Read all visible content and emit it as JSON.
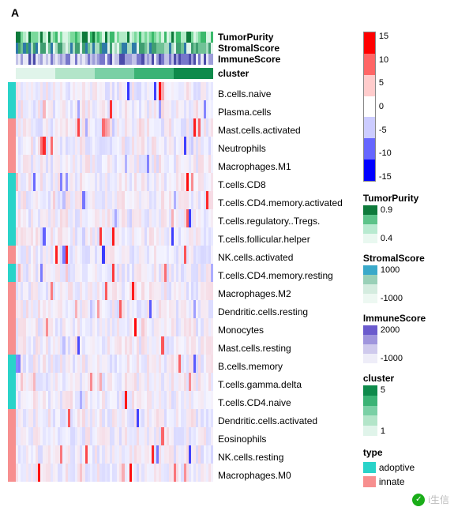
{
  "panel_label": "A",
  "colors": {
    "adoptive": "#29d3c9",
    "innate": "#f78f8f",
    "heat_high": "#ff0000",
    "heat_mid": "#f5f5ff",
    "heat_low": "#0000ff"
  },
  "top_annotations": [
    {
      "name": "TumorPurity",
      "label": "TumorPurity"
    },
    {
      "name": "StromalScore",
      "label": "StromalScore"
    },
    {
      "name": "ImmuneScore",
      "label": "ImmuneScore"
    },
    {
      "name": "cluster",
      "label": "cluster"
    }
  ],
  "annot_styles": {
    "TumorPurity": {
      "palette": [
        "#0e7a3b",
        "#3bb96b",
        "#7ad99b",
        "#b3ebc8",
        "#d9f5e4"
      ]
    },
    "StromalScore": {
      "palette": [
        "#e0f4ea",
        "#a8dbc0",
        "#70c296",
        "#3f9e71",
        "#2d7aa8"
      ]
    },
    "ImmuneScore": {
      "palette": [
        "#e8e8f6",
        "#c3c3e8",
        "#9d9dd9",
        "#7777cb",
        "#4b4baa"
      ]
    },
    "cluster": {
      "palette": [
        "#e0f4ea",
        "#b3e5c9",
        "#7ad0a5",
        "#3bb375",
        "#0e8a4b"
      ]
    }
  },
  "rows": [
    {
      "label": "B.cells.naive",
      "type": "adoptive"
    },
    {
      "label": "Plasma.cells",
      "type": "adoptive"
    },
    {
      "label": "Mast.cells.activated",
      "type": "innate"
    },
    {
      "label": "Neutrophils",
      "type": "innate"
    },
    {
      "label": "Macrophages.M1",
      "type": "innate"
    },
    {
      "label": "T.cells.CD8",
      "type": "adoptive"
    },
    {
      "label": "T.cells.CD4.memory.activated",
      "type": "adoptive"
    },
    {
      "label": "T.cells.regulatory..Tregs.",
      "type": "adoptive"
    },
    {
      "label": "T.cells.follicular.helper",
      "type": "adoptive"
    },
    {
      "label": "NK.cells.activated",
      "type": "innate"
    },
    {
      "label": "T.cells.CD4.memory.resting",
      "type": "adoptive"
    },
    {
      "label": "Macrophages.M2",
      "type": "innate"
    },
    {
      "label": "Dendritic.cells.resting",
      "type": "innate"
    },
    {
      "label": "Monocytes",
      "type": "innate"
    },
    {
      "label": "Mast.cells.resting",
      "type": "innate"
    },
    {
      "label": "B.cells.memory",
      "type": "adoptive"
    },
    {
      "label": "T.cells.gamma.delta",
      "type": "adoptive"
    },
    {
      "label": "T.cells.CD4.naive",
      "type": "adoptive"
    },
    {
      "label": "Dendritic.cells.activated",
      "type": "innate"
    },
    {
      "label": "Eosinophils",
      "type": "innate"
    },
    {
      "label": "NK.cells.resting",
      "type": "innate"
    },
    {
      "label": "Macrophages.M0",
      "type": "innate"
    }
  ],
  "n_columns": 80,
  "legend_main": {
    "height": 190,
    "ticks": [
      "15",
      "10",
      "5",
      "0",
      "-5",
      "-10",
      "-15"
    ],
    "stops": [
      "#ff0000",
      "#ff6666",
      "#ffcccc",
      "#ffffff",
      "#ccccff",
      "#6666ff",
      "#0000ff"
    ]
  },
  "legend_small": [
    {
      "title": "TumorPurity",
      "height": 48,
      "stops": [
        "#0e7a3b",
        "#5cc389",
        "#b8ead0",
        "#e9f8f0"
      ],
      "ticks": [
        "0.9",
        "",
        "",
        "0.4"
      ]
    },
    {
      "title": "StromalScore",
      "height": 48,
      "stops": [
        "#3aa9c9",
        "#99d0b7",
        "#d4ecdf",
        "#edf8f2"
      ],
      "ticks": [
        "1000",
        "",
        "",
        "-1000"
      ]
    },
    {
      "title": "ImmuneScore",
      "height": 48,
      "stops": [
        "#6a5acd",
        "#9f95dd",
        "#cfcaed",
        "#eeedf8"
      ],
      "ticks": [
        "2000",
        "",
        "",
        "-1000"
      ]
    },
    {
      "title": "cluster",
      "height": 64,
      "stops": [
        "#0e8a4b",
        "#3bb375",
        "#7ad0a5",
        "#b3e5c9",
        "#e0f4ea"
      ],
      "ticks": [
        "5",
        "",
        "",
        "",
        "1"
      ]
    }
  ],
  "legend_type": {
    "title": "type",
    "items": [
      {
        "label": "adoptive",
        "color": "#29d3c9"
      },
      {
        "label": "innate",
        "color": "#f78f8f"
      }
    ]
  },
  "watermark": {
    "icon": "✓",
    "text": "i生信"
  }
}
